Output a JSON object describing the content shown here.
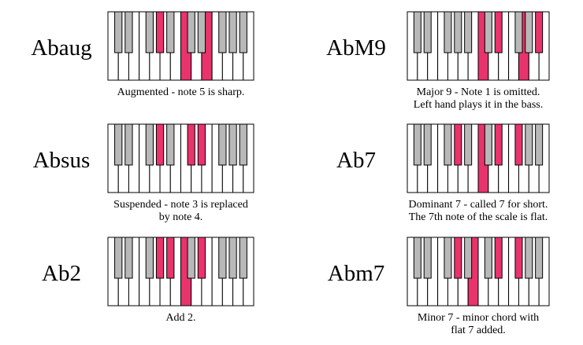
{
  "chords": [
    {
      "name": "Abaug",
      "caption": [
        "Augmented - note 5 is sharp."
      ]
    },
    {
      "name": "AbM9",
      "caption": [
        "Major 9 - Note 1 is omitted.",
        "Left hand plays it in the bass."
      ]
    },
    {
      "name": "Absus",
      "caption": [
        "Suspended - note 3 is replaced",
        "by note 4."
      ]
    },
    {
      "name": "Ab7",
      "caption": [
        "Dominant 7 - called 7 for short.",
        "The 7th note of the scale is flat."
      ]
    },
    {
      "name": "Ab2",
      "caption": [
        "Add 2."
      ]
    },
    {
      "name": "Abm7",
      "caption": [
        "Minor 7 - minor chord with",
        "flat 7 added."
      ]
    }
  ]
}
